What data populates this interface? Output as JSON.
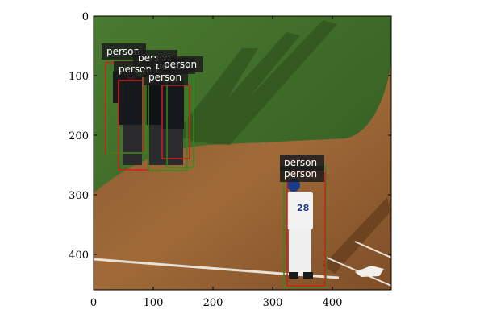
{
  "image_axes": {
    "x_ticks": [
      "0",
      "100",
      "200",
      "300",
      "400"
    ],
    "y_ticks": [
      "0",
      "100",
      "200",
      "300",
      "400"
    ]
  },
  "detections": [
    {
      "label": "person",
      "box_color": "#d81b1b"
    },
    {
      "label": "person",
      "box_color": "#2e8b1b"
    },
    {
      "label": "person",
      "box_color": "#d81b1b"
    },
    {
      "label": "person",
      "box_color": "#2e8b1b"
    },
    {
      "label": "person",
      "box_color": "#d81b1b"
    },
    {
      "label": "person",
      "box_color": "#2e8b1b"
    },
    {
      "label": "person",
      "box_color": "#2e8b1b"
    },
    {
      "label": "person",
      "box_color": "#d81b1b"
    }
  ],
  "colors": {
    "grass": "#3f6a2a",
    "dirt": "#9a6232",
    "label_bg": "#1c1c1c"
  }
}
